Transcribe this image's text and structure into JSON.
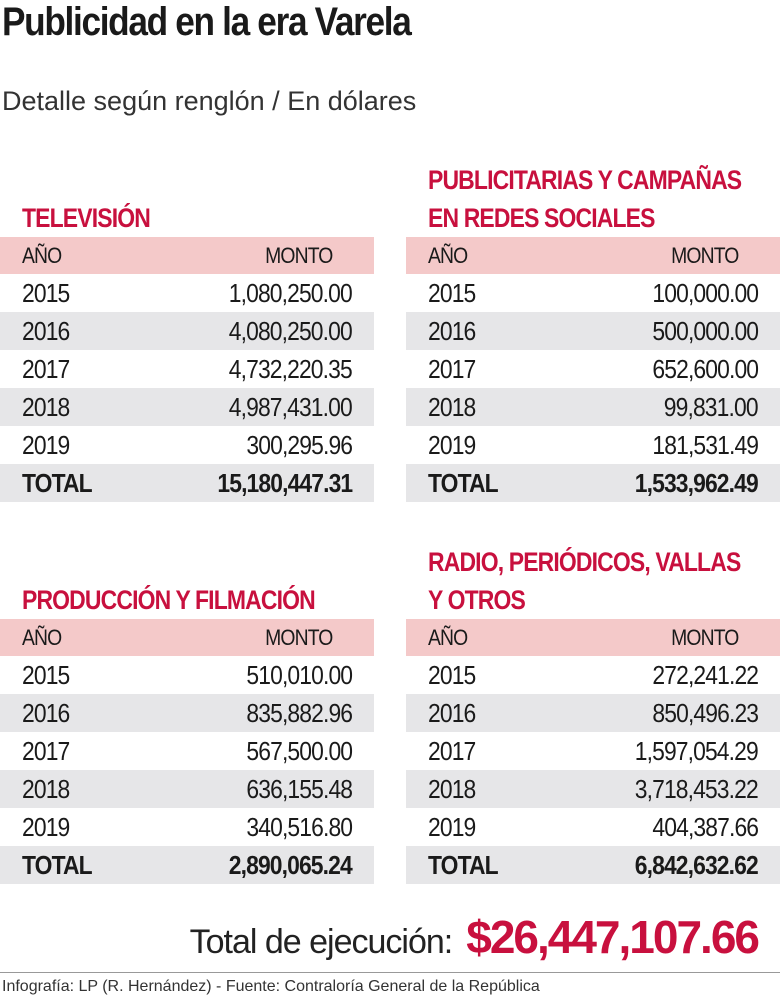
{
  "title": "Publicidad en la era Varela",
  "subtitle": "Detalle según renglón / En dólares",
  "colors": {
    "accent": "#c8103e",
    "header_bg": "#f4c9c9",
    "stripe_bg": "#e6e6e8"
  },
  "col_year": "AÑO",
  "col_amount": "MONTO",
  "total_label": "TOTAL",
  "tables": [
    {
      "title_lines": [
        "TELEVISIÓN"
      ],
      "rows": [
        [
          "2015",
          "1,080,250.00"
        ],
        [
          "2016",
          "4,080,250.00"
        ],
        [
          "2017",
          "4,732,220.35"
        ],
        [
          "2018",
          "4,987,431.00"
        ],
        [
          "2019",
          "300,295.96"
        ]
      ],
      "total": "15,180,447.31"
    },
    {
      "title_lines": [
        "PUBLICITARIAS  Y CAMPAÑAS",
        "EN REDES SOCIALES"
      ],
      "rows": [
        [
          "2015",
          "100,000.00"
        ],
        [
          "2016",
          "500,000.00"
        ],
        [
          "2017",
          "652,600.00"
        ],
        [
          "2018",
          "99,831.00"
        ],
        [
          "2019",
          "181,531.49"
        ]
      ],
      "total": "1,533,962.49"
    },
    {
      "title_lines": [
        "PRODUCCIÓN Y FILMACIÓN"
      ],
      "rows": [
        [
          "2015",
          "510,010.00"
        ],
        [
          "2016",
          "835,882.96"
        ],
        [
          "2017",
          "567,500.00"
        ],
        [
          "2018",
          "636,155.48"
        ],
        [
          "2019",
          "340,516.80"
        ]
      ],
      "total": "2,890,065.24"
    },
    {
      "title_lines": [
        "RADIO, PERIÓDICOS, VALLAS",
        "Y OTROS"
      ],
      "rows": [
        [
          "2015",
          "272,241.22"
        ],
        [
          "2016",
          "850,496.23"
        ],
        [
          "2017",
          "1,597,054.29"
        ],
        [
          "2018",
          "3,718,453.22"
        ],
        [
          "2019",
          "404,387.66"
        ]
      ],
      "total": "6,842,632.62"
    }
  ],
  "grand_total": {
    "label": "Total de ejecución:",
    "value": "$26,447,107.66"
  },
  "footer": "Infografía: LP (R. Hernández) - Fuente: Contraloría General de la República"
}
